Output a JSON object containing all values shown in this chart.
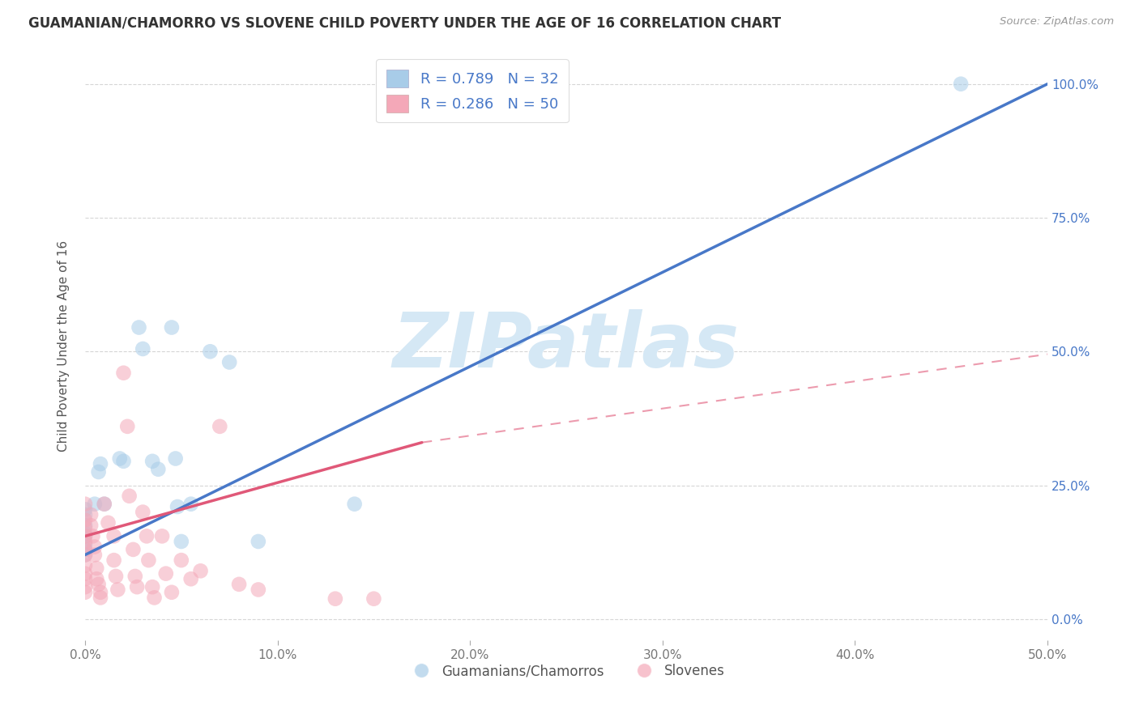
{
  "title": "GUAMANIAN/CHAMORRO VS SLOVENE CHILD POVERTY UNDER THE AGE OF 16 CORRELATION CHART",
  "source": "Source: ZipAtlas.com",
  "ylabel": "Child Poverty Under the Age of 16",
  "xlim": [
    0.0,
    0.5
  ],
  "ylim": [
    -0.04,
    1.06
  ],
  "legend_color1": "#a8cce8",
  "legend_color2": "#f4a8b8",
  "trendline1_color": "#4878c8",
  "trendline2_color": "#e05878",
  "watermark_text": "ZIPatlas",
  "watermark_color": "#d5e8f5",
  "background_color": "#ffffff",
  "grid_color": "#cccccc",
  "ytick_color": "#4878c8",
  "xtick_color": "#777777",
  "title_color": "#333333",
  "source_color": "#999999",
  "ylabel_color": "#555555",
  "guamanian_points": [
    [
      0.0,
      0.205
    ],
    [
      0.0,
      0.195
    ],
    [
      0.0,
      0.175
    ],
    [
      0.0,
      0.16
    ],
    [
      0.0,
      0.155
    ],
    [
      0.0,
      0.14
    ],
    [
      0.0,
      0.13
    ],
    [
      0.0,
      0.12
    ],
    [
      0.005,
      0.215
    ],
    [
      0.007,
      0.275
    ],
    [
      0.008,
      0.29
    ],
    [
      0.01,
      0.215
    ],
    [
      0.018,
      0.3
    ],
    [
      0.02,
      0.295
    ],
    [
      0.028,
      0.545
    ],
    [
      0.03,
      0.505
    ],
    [
      0.035,
      0.295
    ],
    [
      0.038,
      0.28
    ],
    [
      0.045,
      0.545
    ],
    [
      0.047,
      0.3
    ],
    [
      0.048,
      0.21
    ],
    [
      0.05,
      0.145
    ],
    [
      0.055,
      0.215
    ],
    [
      0.065,
      0.5
    ],
    [
      0.075,
      0.48
    ],
    [
      0.09,
      0.145
    ],
    [
      0.14,
      0.215
    ],
    [
      0.455,
      1.0
    ]
  ],
  "slovene_points": [
    [
      0.0,
      0.215
    ],
    [
      0.0,
      0.185
    ],
    [
      0.0,
      0.17
    ],
    [
      0.0,
      0.155
    ],
    [
      0.0,
      0.145
    ],
    [
      0.0,
      0.13
    ],
    [
      0.0,
      0.12
    ],
    [
      0.0,
      0.1
    ],
    [
      0.0,
      0.085
    ],
    [
      0.0,
      0.075
    ],
    [
      0.0,
      0.06
    ],
    [
      0.0,
      0.05
    ],
    [
      0.003,
      0.195
    ],
    [
      0.003,
      0.175
    ],
    [
      0.004,
      0.155
    ],
    [
      0.005,
      0.135
    ],
    [
      0.005,
      0.12
    ],
    [
      0.006,
      0.095
    ],
    [
      0.006,
      0.075
    ],
    [
      0.007,
      0.065
    ],
    [
      0.008,
      0.05
    ],
    [
      0.008,
      0.04
    ],
    [
      0.01,
      0.215
    ],
    [
      0.012,
      0.18
    ],
    [
      0.015,
      0.155
    ],
    [
      0.015,
      0.11
    ],
    [
      0.016,
      0.08
    ],
    [
      0.017,
      0.055
    ],
    [
      0.02,
      0.46
    ],
    [
      0.022,
      0.36
    ],
    [
      0.023,
      0.23
    ],
    [
      0.025,
      0.13
    ],
    [
      0.026,
      0.08
    ],
    [
      0.027,
      0.06
    ],
    [
      0.03,
      0.2
    ],
    [
      0.032,
      0.155
    ],
    [
      0.033,
      0.11
    ],
    [
      0.035,
      0.06
    ],
    [
      0.036,
      0.04
    ],
    [
      0.04,
      0.155
    ],
    [
      0.042,
      0.085
    ],
    [
      0.045,
      0.05
    ],
    [
      0.05,
      0.11
    ],
    [
      0.055,
      0.075
    ],
    [
      0.06,
      0.09
    ],
    [
      0.07,
      0.36
    ],
    [
      0.08,
      0.065
    ],
    [
      0.09,
      0.055
    ],
    [
      0.13,
      0.038
    ],
    [
      0.15,
      0.038
    ]
  ],
  "blue_trendline": [
    [
      0.0,
      0.12
    ],
    [
      0.5,
      1.0
    ]
  ],
  "pink_trendline_solid": [
    [
      0.0,
      0.155
    ],
    [
      0.175,
      0.33
    ]
  ],
  "pink_trendline_dashed": [
    [
      0.175,
      0.33
    ],
    [
      0.5,
      0.495
    ]
  ]
}
